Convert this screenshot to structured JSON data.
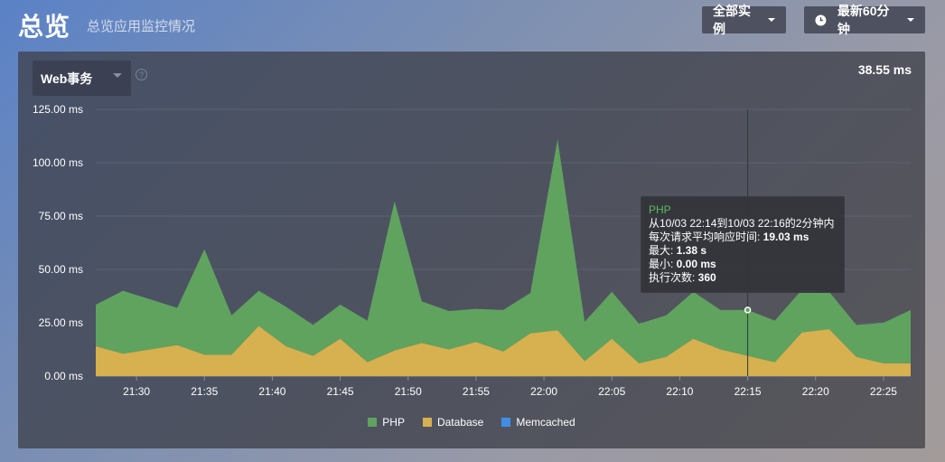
{
  "header": {
    "title": "总览",
    "subtitle": "总览应用监控情况",
    "instances_label": "全部实例",
    "time_label": "最新60分钟"
  },
  "panel": {
    "metric_label": "Web事务",
    "help_text": "?",
    "current_value": "38.55 ms"
  },
  "tooltip": {
    "title": "PHP",
    "range": "从10/03 22:14到10/03 22:16的2分钟内",
    "avg_label": "每次请求平均响应时间: ",
    "avg_value": "19.03 ms",
    "max_label": "最大: ",
    "max_value": "1.38 s",
    "min_label": "最小: ",
    "min_value": "0.00 ms",
    "count_label": "执行次数: ",
    "count_value": "360"
  },
  "colors": {
    "php": "#5fa35f",
    "database": "#d7b04f",
    "memcached": "#3f8ee6"
  },
  "chart_data": {
    "type": "area",
    "stacked": true,
    "ylim": [
      0,
      125
    ],
    "yticks": [
      0,
      25,
      50,
      75,
      100,
      125
    ],
    "ytick_labels": [
      "0.00 ms",
      "25.00 ms",
      "50.00 ms",
      "75.00 ms",
      "100.00 ms",
      "125.00 ms"
    ],
    "xticks": [
      "21:30",
      "21:35",
      "21:40",
      "21:45",
      "21:50",
      "21:55",
      "22:00",
      "22:05",
      "22:10",
      "22:15",
      "22:20",
      "22:25"
    ],
    "x_start": "21:27",
    "x_end": "22:27",
    "x": [
      "21:27",
      "21:29",
      "21:31",
      "21:33",
      "21:35",
      "21:37",
      "21:39",
      "21:41",
      "21:43",
      "21:45",
      "21:47",
      "21:49",
      "21:51",
      "21:53",
      "21:55",
      "21:57",
      "21:59",
      "22:01",
      "22:03",
      "22:05",
      "22:07",
      "22:09",
      "22:11",
      "22:13",
      "22:15",
      "22:17",
      "22:19",
      "22:21",
      "22:23",
      "22:25",
      "22:27"
    ],
    "series": [
      {
        "name": "Database",
        "values": [
          14,
          10.5,
          12.5,
          14.5,
          10,
          10,
          23.5,
          14,
          9.5,
          17.5,
          6.5,
          12,
          15.5,
          12.5,
          16,
          11.5,
          20,
          21.5,
          7,
          17.5,
          6,
          9,
          17.5,
          12.5,
          9.5,
          6.5,
          20.5,
          22,
          9,
          6,
          6
        ]
      },
      {
        "name": "PHP",
        "values": [
          19.5,
          29.5,
          23.5,
          17.5,
          49.5,
          18.5,
          16.5,
          18.5,
          14.5,
          16,
          19.5,
          70,
          19.5,
          18,
          15.5,
          19.5,
          19,
          89.5,
          18.5,
          22,
          18.5,
          19.5,
          22,
          18.5,
          21.5,
          19.5,
          20,
          17.5,
          15,
          19,
          25
        ]
      },
      {
        "name": "Memcached",
        "values": [
          0,
          0,
          0,
          0,
          0,
          0,
          0,
          0,
          0,
          0,
          0,
          0,
          0,
          0,
          0,
          0,
          0,
          0,
          0,
          0,
          0,
          0,
          0,
          0,
          0,
          0,
          0,
          0,
          0,
          0,
          0
        ]
      }
    ],
    "crosshair_x": "22:15",
    "legend": "bottom-center"
  }
}
